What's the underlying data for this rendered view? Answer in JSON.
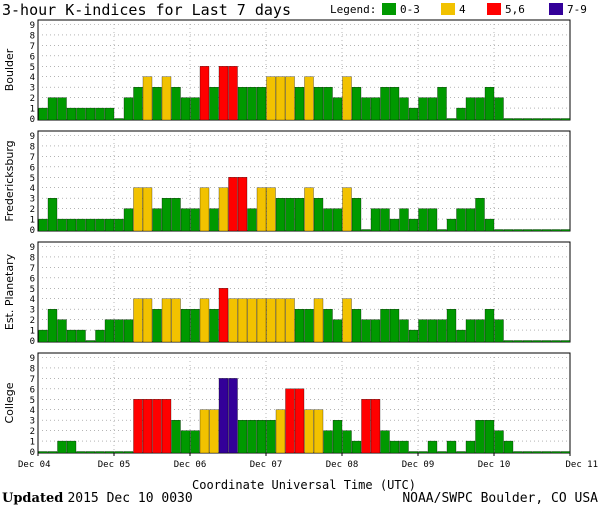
{
  "page": {
    "title": "3-hour K-indices for Last 7 days",
    "updated_label": "Updated",
    "updated_value": "2015 Dec 10 0030",
    "credit": "NOAA/SWPC Boulder, CO USA",
    "xlabel": "Coordinate Universal Time (UTC)"
  },
  "legend": {
    "label": "Legend:",
    "items": [
      {
        "label": "0-3",
        "color": "#009900"
      },
      {
        "label": "4",
        "color": "#f2c200"
      },
      {
        "label": "5,6",
        "color": "#ff0000"
      },
      {
        "label": "7-9",
        "color": "#330099"
      }
    ]
  },
  "chart_data": {
    "type": "bar",
    "title": "3-hour K-indices for Last 7 days",
    "xlabel": "Coordinate Universal Time (UTC)",
    "x_ticks": [
      "Dec 04",
      "Dec 05",
      "Dec 06",
      "Dec 07",
      "Dec 08",
      "Dec 09",
      "Dec 10",
      "Dec 11"
    ],
    "ylim": [
      0,
      9
    ],
    "y_ticks": [
      0,
      1,
      2,
      3,
      4,
      5,
      6,
      7,
      8,
      9
    ],
    "grid": true,
    "color_scale": [
      {
        "range": "0-3",
        "color": "#009900"
      },
      {
        "range": "4",
        "color": "#f2c200"
      },
      {
        "range": "5,6",
        "color": "#ff0000"
      },
      {
        "range": "7-9",
        "color": "#330099"
      }
    ],
    "bars_per_day": 8,
    "panels": [
      {
        "name": "Boulder",
        "values": [
          1,
          2,
          2,
          1,
          1,
          1,
          1,
          1,
          0,
          2,
          3,
          4,
          3,
          4,
          3,
          2,
          2,
          5,
          3,
          5,
          5,
          3,
          3,
          3,
          4,
          4,
          4,
          3,
          4,
          3,
          3,
          2,
          4,
          3,
          2,
          2,
          3,
          3,
          2,
          1,
          2,
          2,
          3,
          0,
          1,
          2,
          2,
          3,
          2,
          0,
          0,
          0,
          0,
          0,
          0,
          0
        ]
      },
      {
        "name": "Fredericksburg",
        "values": [
          1,
          3,
          1,
          1,
          1,
          1,
          1,
          1,
          1,
          2,
          4,
          4,
          2,
          3,
          3,
          2,
          2,
          4,
          2,
          4,
          5,
          5,
          2,
          4,
          4,
          3,
          3,
          3,
          4,
          3,
          2,
          2,
          4,
          3,
          0,
          2,
          2,
          1,
          2,
          1,
          2,
          2,
          0,
          1,
          2,
          2,
          3,
          1,
          0,
          0,
          0,
          0,
          0,
          0,
          0,
          0
        ]
      },
      {
        "name": "Est. Planetary",
        "values": [
          1,
          3,
          2,
          1,
          1,
          0,
          1,
          2,
          2,
          2,
          4,
          4,
          3,
          4,
          4,
          3,
          3,
          4,
          3,
          5,
          4,
          4,
          4,
          4,
          4,
          4,
          4,
          3,
          3,
          4,
          3,
          2,
          4,
          3,
          2,
          2,
          3,
          3,
          2,
          1,
          2,
          2,
          2,
          3,
          1,
          2,
          2,
          3,
          2,
          0,
          0,
          0,
          0,
          0,
          0,
          0
        ]
      },
      {
        "name": "College",
        "values": [
          0,
          0,
          1,
          1,
          0,
          0,
          0,
          0,
          0,
          0,
          5,
          5,
          5,
          5,
          3,
          2,
          2,
          4,
          4,
          7,
          7,
          3,
          3,
          3,
          3,
          4,
          6,
          6,
          4,
          4,
          2,
          3,
          2,
          1,
          5,
          5,
          2,
          1,
          1,
          0,
          0,
          1,
          0,
          1,
          0,
          1,
          3,
          3,
          2,
          1,
          0,
          0,
          0,
          0,
          0,
          0
        ]
      }
    ]
  }
}
